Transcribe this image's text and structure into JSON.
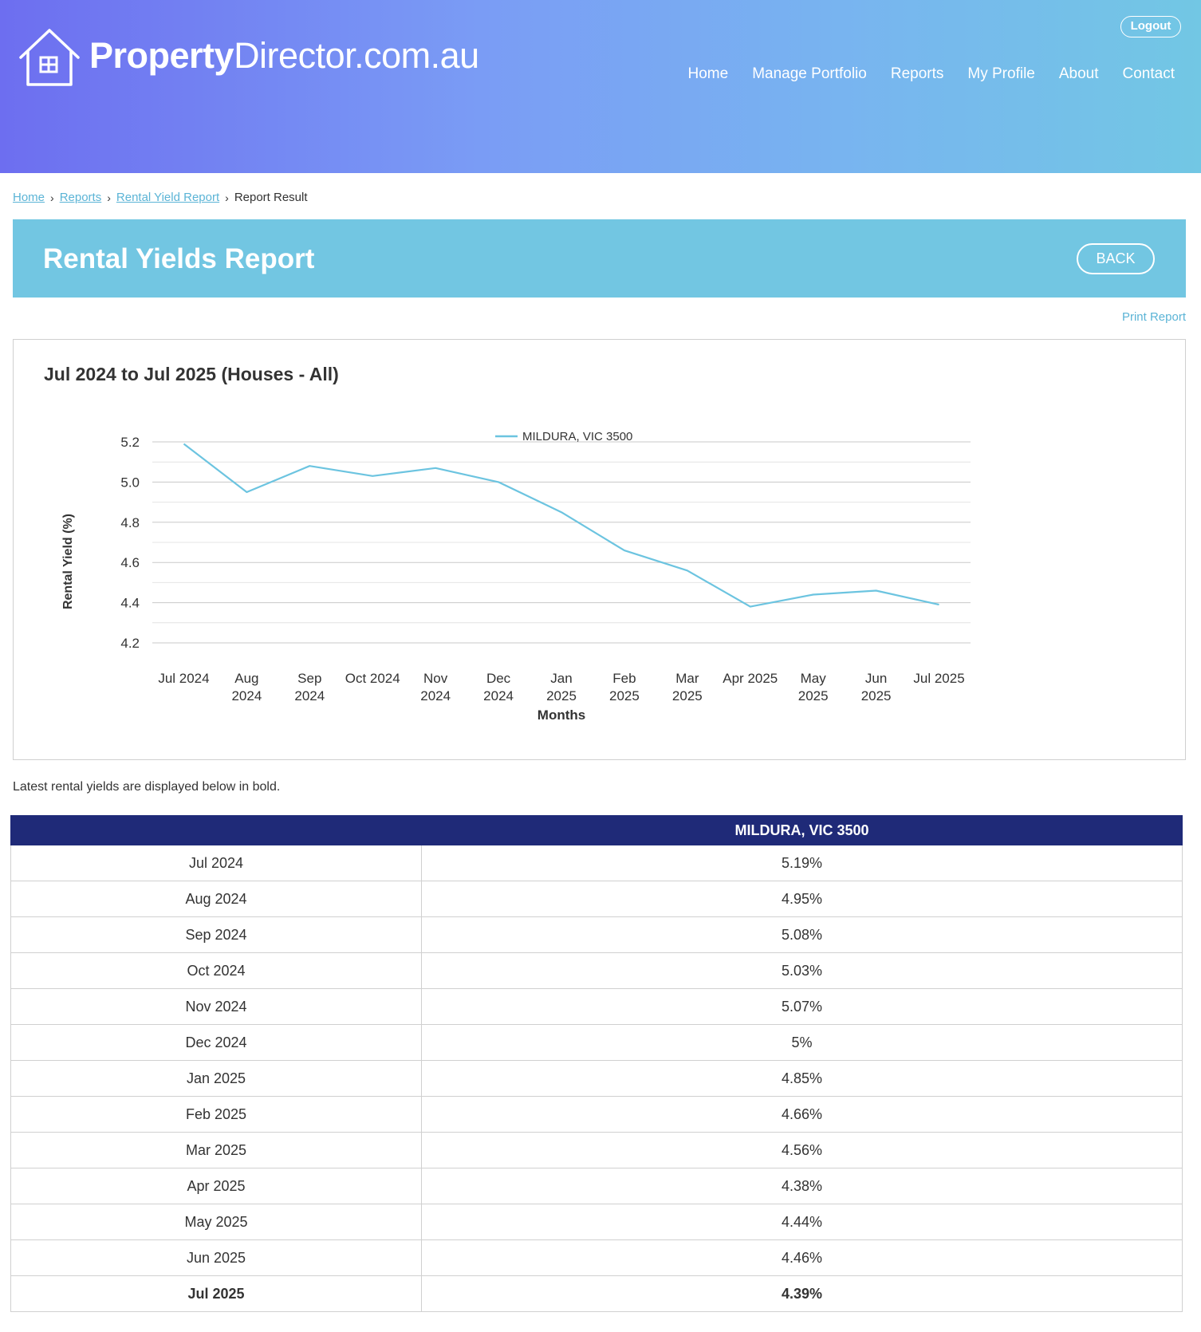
{
  "header": {
    "logo_bold": "Property",
    "logo_light": "Director.com.au",
    "logout_label": "Logout",
    "nav": [
      {
        "label": "Home"
      },
      {
        "label": "Manage Portfolio"
      },
      {
        "label": "Reports"
      },
      {
        "label": "My Profile"
      },
      {
        "label": "About"
      },
      {
        "label": "Contact"
      }
    ]
  },
  "breadcrumb": {
    "home": "Home",
    "reports": "Reports",
    "rental_yield_report": "Rental Yield Report",
    "current": "Report Result"
  },
  "title_bar": {
    "title": "Rental Yields Report",
    "back_label": "BACK"
  },
  "print_report_label": "Print Report",
  "chart_card": {
    "title": "Jul 2024 to Jul 2025 (Houses - All)"
  },
  "chart_data": {
    "type": "line",
    "title": "",
    "xlabel": "Months",
    "ylabel": "Rental Yield (%)",
    "ylim": [
      4.2,
      5.2
    ],
    "yticks": [
      "4.2",
      "4.4",
      "4.6",
      "4.8",
      "5.0",
      "5.2"
    ],
    "grid": true,
    "legend_position": "top",
    "categories": [
      [
        "Jul 2024"
      ],
      [
        "Aug",
        "2024"
      ],
      [
        "Sep",
        "2024"
      ],
      [
        "Oct 2024"
      ],
      [
        "Nov",
        "2024"
      ],
      [
        "Dec",
        "2024"
      ],
      [
        "Jan",
        "2025"
      ],
      [
        "Feb",
        "2025"
      ],
      [
        "Mar",
        "2025"
      ],
      [
        "Apr 2025"
      ],
      [
        "May",
        "2025"
      ],
      [
        "Jun",
        "2025"
      ],
      [
        "Jul 2025"
      ]
    ],
    "series": [
      {
        "name": "MILDURA, VIC 3500",
        "color": "#6cc4e0",
        "values": [
          5.19,
          4.95,
          5.08,
          5.03,
          5.07,
          5.0,
          4.85,
          4.66,
          4.56,
          4.38,
          4.44,
          4.46,
          4.39
        ]
      }
    ]
  },
  "note": "Latest rental yields are displayed below in bold.",
  "table": {
    "headers": [
      "",
      "MILDURA, VIC 3500"
    ],
    "rows": [
      {
        "month": "Jul 2024",
        "value": "5.19%"
      },
      {
        "month": "Aug 2024",
        "value": "4.95%"
      },
      {
        "month": "Sep 2024",
        "value": "5.08%"
      },
      {
        "month": "Oct 2024",
        "value": "5.03%"
      },
      {
        "month": "Nov 2024",
        "value": "5.07%"
      },
      {
        "month": "Dec 2024",
        "value": "5%"
      },
      {
        "month": "Jan 2025",
        "value": "4.85%"
      },
      {
        "month": "Feb 2025",
        "value": "4.66%"
      },
      {
        "month": "Mar 2025",
        "value": "4.56%"
      },
      {
        "month": "Apr 2025",
        "value": "4.38%"
      },
      {
        "month": "May 2025",
        "value": "4.44%"
      },
      {
        "month": "Jun 2025",
        "value": "4.46%"
      },
      {
        "month": "Jul 2025",
        "value": "4.39%"
      }
    ]
  },
  "colors": {
    "header_start": "#6d6ef0",
    "header_end": "#72c7e4",
    "title_bar": "#72c6e2",
    "table_header": "#1f2a78",
    "link": "#5bb4d6"
  }
}
